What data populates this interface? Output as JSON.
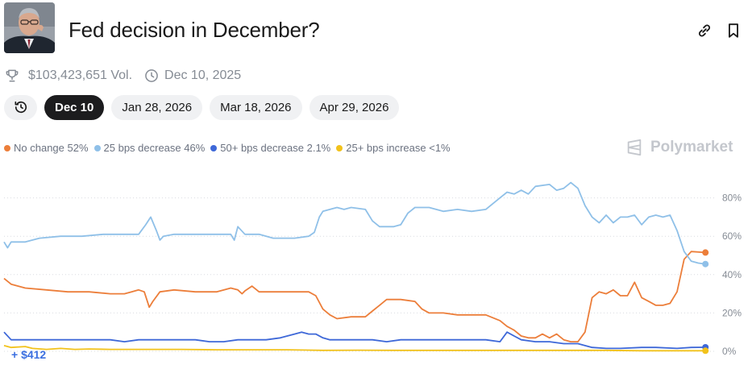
{
  "header": {
    "title": "Fed decision in December?",
    "avatar_icon": "person-portrait-avatar",
    "link_icon": "link-icon",
    "bookmark_icon": "bookmark-icon"
  },
  "meta": {
    "volume": "$103,423,651 Vol.",
    "end_date": "Dec 10, 2025",
    "volume_icon": "trophy-icon",
    "date_icon": "clock-icon"
  },
  "tabs": [
    {
      "label": "",
      "icon": "history-icon",
      "active": false
    },
    {
      "label": "Dec 10",
      "active": true
    },
    {
      "label": "Jan 28, 2026",
      "active": false
    },
    {
      "label": "Mar 18, 2026",
      "active": false
    },
    {
      "label": "Apr 29, 2026",
      "active": false
    }
  ],
  "brand": {
    "name": "Polymarket",
    "color": "#c4c7cd"
  },
  "position_pnl": "+ $412",
  "chart_data": {
    "type": "line",
    "ylim": [
      0,
      90
    ],
    "y_ticks": [
      "0%",
      "20%",
      "40%",
      "60%",
      "80%"
    ],
    "y_tick_values": [
      0,
      20,
      40,
      60,
      80
    ],
    "grid": true,
    "x_range": [
      0,
      100
    ],
    "series": [
      {
        "name": "No change",
        "legend": "No change 52%",
        "color": "#ec7e3a",
        "points": [
          [
            0,
            38
          ],
          [
            1,
            35
          ],
          [
            3,
            33
          ],
          [
            6,
            32
          ],
          [
            9,
            31
          ],
          [
            12,
            31
          ],
          [
            15,
            30
          ],
          [
            17,
            30
          ],
          [
            18,
            31
          ],
          [
            19,
            32
          ],
          [
            19.8,
            31
          ],
          [
            20.5,
            23
          ],
          [
            21,
            26
          ],
          [
            22,
            31
          ],
          [
            24,
            32
          ],
          [
            27,
            31
          ],
          [
            30,
            31
          ],
          [
            32,
            33
          ],
          [
            33,
            32
          ],
          [
            33.6,
            30
          ],
          [
            34,
            31.5
          ],
          [
            35,
            34
          ],
          [
            36,
            31
          ],
          [
            38,
            31
          ],
          [
            41,
            31
          ],
          [
            43,
            31
          ],
          [
            44,
            29
          ],
          [
            45,
            22
          ],
          [
            46,
            19
          ],
          [
            47,
            17
          ],
          [
            49,
            18
          ],
          [
            51,
            18
          ],
          [
            52,
            21
          ],
          [
            53,
            24
          ],
          [
            54,
            27
          ],
          [
            56,
            27
          ],
          [
            58,
            26
          ],
          [
            59,
            22
          ],
          [
            60,
            20
          ],
          [
            62,
            20
          ],
          [
            64,
            19
          ],
          [
            66,
            19
          ],
          [
            68,
            19
          ],
          [
            70,
            16
          ],
          [
            71,
            13
          ],
          [
            72,
            11
          ],
          [
            73,
            8
          ],
          [
            74,
            7
          ],
          [
            75,
            7
          ],
          [
            76,
            9
          ],
          [
            77,
            7
          ],
          [
            78,
            9
          ],
          [
            79,
            6
          ],
          [
            80,
            5
          ],
          [
            81,
            5
          ],
          [
            82,
            10
          ],
          [
            83,
            28
          ],
          [
            84,
            31
          ],
          [
            85,
            30
          ],
          [
            86,
            32
          ],
          [
            87,
            29
          ],
          [
            88,
            29
          ],
          [
            89,
            36
          ],
          [
            90,
            28
          ],
          [
            91,
            26
          ],
          [
            92,
            24
          ],
          [
            93,
            24
          ],
          [
            94,
            25
          ],
          [
            95,
            31
          ],
          [
            96,
            48
          ],
          [
            97,
            52
          ],
          [
            99,
            51.5
          ]
        ]
      },
      {
        "name": "25 bps decrease",
        "legend": "25 bps decrease 46%",
        "color": "#8fc0e8",
        "points": [
          [
            0,
            57
          ],
          [
            0.5,
            54
          ],
          [
            1,
            57
          ],
          [
            3,
            57
          ],
          [
            5,
            59
          ],
          [
            8,
            60
          ],
          [
            11,
            60
          ],
          [
            14,
            61
          ],
          [
            17,
            61
          ],
          [
            19,
            61
          ],
          [
            20,
            66
          ],
          [
            20.7,
            70
          ],
          [
            21.5,
            63
          ],
          [
            22,
            58
          ],
          [
            22.5,
            60
          ],
          [
            24,
            61
          ],
          [
            27,
            61
          ],
          [
            30,
            61
          ],
          [
            32,
            61
          ],
          [
            32.5,
            58
          ],
          [
            33,
            65
          ],
          [
            34,
            61
          ],
          [
            36,
            61
          ],
          [
            38,
            59
          ],
          [
            41,
            59
          ],
          [
            43,
            60
          ],
          [
            43.8,
            62
          ],
          [
            44.5,
            70
          ],
          [
            45,
            73
          ],
          [
            46,
            74
          ],
          [
            47,
            75
          ],
          [
            48,
            74
          ],
          [
            49,
            75
          ],
          [
            51,
            74
          ],
          [
            52,
            68
          ],
          [
            53,
            65
          ],
          [
            55,
            65
          ],
          [
            56,
            66
          ],
          [
            57,
            72
          ],
          [
            58,
            75
          ],
          [
            60,
            75
          ],
          [
            62,
            73
          ],
          [
            64,
            74
          ],
          [
            66,
            73
          ],
          [
            68,
            74
          ],
          [
            70,
            80
          ],
          [
            71,
            83
          ],
          [
            72,
            82
          ],
          [
            73,
            84
          ],
          [
            74,
            82
          ],
          [
            75,
            86
          ],
          [
            77,
            87
          ],
          [
            78,
            84
          ],
          [
            79,
            85
          ],
          [
            80,
            88
          ],
          [
            81,
            85
          ],
          [
            82,
            76
          ],
          [
            83,
            70
          ],
          [
            84,
            67
          ],
          [
            85,
            71
          ],
          [
            86,
            67
          ],
          [
            87,
            70
          ],
          [
            88,
            70
          ],
          [
            89,
            71
          ],
          [
            90,
            66
          ],
          [
            91,
            70
          ],
          [
            92,
            71
          ],
          [
            93,
            70
          ],
          [
            94,
            71
          ],
          [
            95,
            63
          ],
          [
            96,
            52
          ],
          [
            97,
            47
          ],
          [
            98,
            46
          ],
          [
            99,
            45.5
          ]
        ]
      },
      {
        "name": "50+ bps decrease",
        "legend": "50+ bps decrease 2.1%",
        "color": "#3e68d8",
        "points": [
          [
            0,
            10
          ],
          [
            1,
            6
          ],
          [
            3,
            6
          ],
          [
            5,
            6
          ],
          [
            8,
            6
          ],
          [
            10,
            6
          ],
          [
            12,
            6
          ],
          [
            15,
            6
          ],
          [
            17,
            5
          ],
          [
            19,
            6
          ],
          [
            21,
            6
          ],
          [
            23,
            6
          ],
          [
            25,
            6
          ],
          [
            27,
            6
          ],
          [
            29,
            5
          ],
          [
            31,
            5
          ],
          [
            33,
            6
          ],
          [
            35,
            6
          ],
          [
            37,
            6
          ],
          [
            39,
            7
          ],
          [
            41,
            9
          ],
          [
            42,
            10
          ],
          [
            43,
            9
          ],
          [
            44,
            9
          ],
          [
            45,
            7
          ],
          [
            46,
            6
          ],
          [
            48,
            6
          ],
          [
            50,
            6
          ],
          [
            52,
            6
          ],
          [
            54,
            5
          ],
          [
            56,
            6
          ],
          [
            58,
            6
          ],
          [
            60,
            6
          ],
          [
            62,
            6
          ],
          [
            64,
            6
          ],
          [
            66,
            6
          ],
          [
            68,
            6
          ],
          [
            70,
            5
          ],
          [
            71,
            10
          ],
          [
            72,
            8
          ],
          [
            73,
            6
          ],
          [
            75,
            5
          ],
          [
            77,
            5
          ],
          [
            79,
            4
          ],
          [
            81,
            4
          ],
          [
            83,
            2
          ],
          [
            85,
            1.5
          ],
          [
            87,
            1.5
          ],
          [
            90,
            2
          ],
          [
            92,
            2
          ],
          [
            95,
            1.5
          ],
          [
            97,
            2
          ],
          [
            99,
            2.1
          ]
        ]
      },
      {
        "name": "25+ bps increase",
        "legend": "25+ bps increase <1%",
        "color": "#f2c21b",
        "points": [
          [
            0,
            3
          ],
          [
            1,
            2
          ],
          [
            3,
            2.5
          ],
          [
            4,
            1.5
          ],
          [
            6,
            1
          ],
          [
            8,
            1.5
          ],
          [
            10,
            1
          ],
          [
            12,
            1.2
          ],
          [
            15,
            1
          ],
          [
            18,
            1
          ],
          [
            20,
            1
          ],
          [
            25,
            1
          ],
          [
            30,
            0.8
          ],
          [
            35,
            0.8
          ],
          [
            40,
            0.8
          ],
          [
            45,
            0.5
          ],
          [
            50,
            0.6
          ],
          [
            55,
            0.5
          ],
          [
            60,
            0.5
          ],
          [
            65,
            0.5
          ],
          [
            70,
            0.5
          ],
          [
            75,
            0.5
          ],
          [
            80,
            0.5
          ],
          [
            85,
            0.5
          ],
          [
            90,
            0.3
          ],
          [
            95,
            0.3
          ],
          [
            99,
            0.3
          ]
        ]
      }
    ]
  }
}
